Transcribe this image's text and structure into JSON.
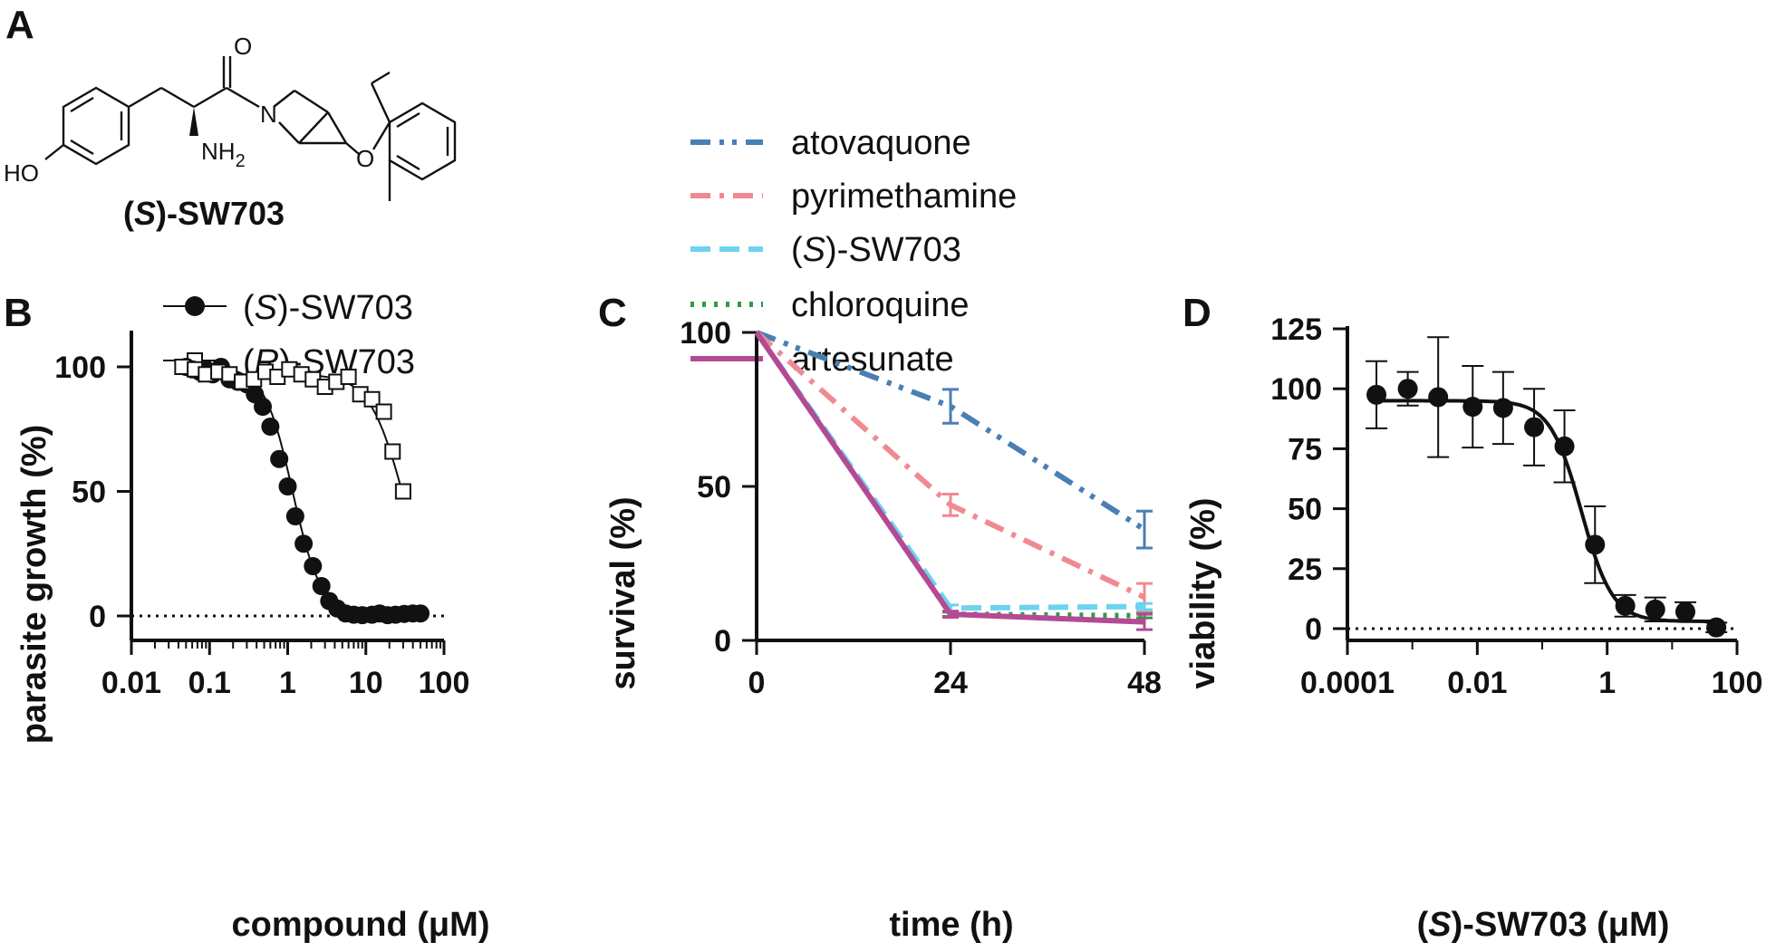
{
  "panel_labels": {
    "a": "A",
    "b": "B",
    "c": "C",
    "d": "D"
  },
  "structure": {
    "name_prefix": "(",
    "name_italic": "S",
    "name_suffix": ")-SW703",
    "atom_O": "O",
    "atom_N": "N",
    "atom_HO": "HO",
    "atom_NH2": "NH",
    "atom_NH2_sub": "2"
  },
  "chart_data": [
    {
      "id": "B",
      "type": "scatter",
      "xscale": "log",
      "xlim": [
        0.01,
        100
      ],
      "ylim": [
        0,
        110
      ],
      "xticks": [
        "0.01",
        "0.1",
        "1",
        "10",
        "100"
      ],
      "yticks": [
        "0",
        "50",
        "100"
      ],
      "xlabel": "compound (μM)",
      "ylabel": "parasite growth (%)",
      "legend": {
        "placement": "top",
        "entries": [
          {
            "prefix": "(",
            "italic": "S",
            "suffix": ")-SW703",
            "marker": "filled-circle"
          },
          {
            "prefix": "(",
            "italic": "R",
            "suffix": ")-SW703",
            "marker": "open-square"
          }
        ]
      },
      "series": [
        {
          "marker": "filled-circle",
          "color": "#111111",
          "x": [
            0.05,
            0.06,
            0.075,
            0.09,
            0.11,
            0.14,
            0.18,
            0.23,
            0.3,
            0.38,
            0.48,
            0.6,
            0.78,
            1.0,
            1.25,
            1.6,
            2.1,
            2.7,
            3.4,
            4.3,
            5.5,
            7.0,
            9.0,
            12,
            15,
            19,
            24,
            31,
            40,
            50
          ],
          "y": [
            100,
            99,
            98,
            99,
            97,
            100,
            95,
            94,
            93,
            89,
            84,
            76,
            63,
            52,
            40,
            29,
            20,
            12,
            6,
            3,
            1,
            0.5,
            0.3,
            0.5,
            1,
            0.3,
            0.5,
            0.8,
            1,
            1
          ],
          "fit": {
            "top": 100,
            "bottom": 0.5,
            "ic50": 1.15,
            "hill": 2.4
          }
        },
        {
          "marker": "open-square",
          "color": "#111111",
          "x": [
            0.045,
            0.065,
            0.09,
            0.13,
            0.18,
            0.26,
            0.37,
            0.52,
            0.74,
            1.05,
            1.5,
            2.1,
            3.0,
            4.2,
            6.0,
            8.5,
            12,
            17,
            22,
            30
          ],
          "y": [
            100,
            99,
            97,
            98,
            97,
            94,
            95,
            98,
            96,
            99,
            97,
            95,
            92,
            94,
            96,
            89,
            87,
            82,
            66,
            50
          ],
          "fit": {
            "top": 97,
            "bottom": 0,
            "ic50": 30,
            "hill": 2.0
          }
        }
      ]
    },
    {
      "id": "C",
      "type": "line",
      "xlim": [
        0,
        48
      ],
      "ylim": [
        0,
        100
      ],
      "xticks": [
        "0",
        "24",
        "48"
      ],
      "yticks": [
        "0",
        "50",
        "100"
      ],
      "xlabel": "time (h)",
      "ylabel": "survival (%)",
      "legend": {
        "placement": "top"
      },
      "x": [
        0,
        24,
        48
      ],
      "series": [
        {
          "name": "atovaquone",
          "color": "#4a7fb4",
          "dash": "22 10 5 9 5 10",
          "values": [
            100,
            76,
            36
          ],
          "err": [
            0,
            5.5,
            6
          ]
        },
        {
          "name": "pyrimethamine",
          "color": "#f08a92",
          "dash": "22 10 5 10",
          "values": [
            100,
            44,
            14
          ],
          "err": [
            0,
            3.5,
            4.5
          ]
        },
        {
          "name_prefix": "(",
          "name_italic": "S",
          "name_suffix": ")-SW703",
          "color": "#6dd3ef",
          "dash": "22 10",
          "values": [
            100,
            10.5,
            11
          ],
          "err": [
            0,
            1,
            1
          ]
        },
        {
          "name": "chloroquine",
          "color": "#2e9a47",
          "dash": "4 9",
          "values": [
            100,
            8.5,
            8
          ],
          "err": [
            0,
            0.7,
            0.7
          ]
        },
        {
          "name": "artesunate",
          "color": "#b54a94",
          "dash": "",
          "values": [
            100,
            8.5,
            6
          ],
          "err": [
            0,
            1,
            2.5
          ]
        }
      ]
    },
    {
      "id": "D",
      "type": "scatter",
      "xscale": "log",
      "xlim": [
        0.0001,
        100
      ],
      "ylim": [
        0,
        125
      ],
      "xticks": [
        "0.0001",
        "0.01",
        "1",
        "100"
      ],
      "yticks": [
        "0",
        "25",
        "50",
        "75",
        "100",
        "125"
      ],
      "xlabel_prefix": "(",
      "xlabel_italic": "S",
      "xlabel_suffix": ")-SW703 (μM)",
      "ylabel": "viability (%)",
      "series": [
        {
          "marker": "filled-circle",
          "color": "#111111",
          "x": [
            0.00028,
            0.00085,
            0.0025,
            0.0085,
            0.025,
            0.075,
            0.22,
            0.65,
            1.9,
            5.5,
            16,
            48
          ],
          "y": [
            97.5,
            100,
            96.5,
            92.5,
            92,
            84,
            76,
            35,
            9.5,
            8,
            7,
            0.5
          ],
          "err": [
            14,
            7,
            25,
            17,
            15,
            16,
            15,
            16,
            4.5,
            5,
            4,
            2
          ],
          "fit": {
            "top": 95,
            "bottom": 3,
            "ic50": 0.4,
            "hill": 1.8
          }
        }
      ]
    }
  ]
}
